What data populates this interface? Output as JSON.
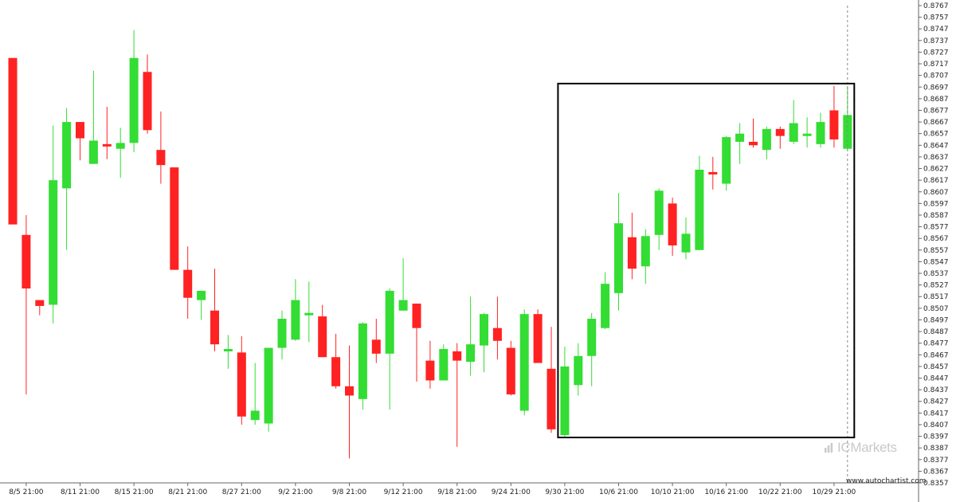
{
  "chart_data": {
    "type": "candlestick",
    "title": "",
    "xlabel": "",
    "ylabel": "",
    "ylim": [
      0.8357,
      0.8767
    ],
    "yticks": [
      "0.8767",
      "0.8757",
      "0.8747",
      "0.8737",
      "0.8727",
      "0.8717",
      "0.8707",
      "0.8697",
      "0.8687",
      "0.8677",
      "0.8667",
      "0.8657",
      "0.8647",
      "0.8637",
      "0.8627",
      "0.8617",
      "0.8607",
      "0.8597",
      "0.8587",
      "0.8577",
      "0.8567",
      "0.8557",
      "0.8547",
      "0.8537",
      "0.8527",
      "0.8517",
      "0.8507",
      "0.8497",
      "0.8487",
      "0.8477",
      "0.8467",
      "0.8457",
      "0.8447",
      "0.8437",
      "0.8427",
      "0.8417",
      "0.8407",
      "0.8397",
      "0.8387",
      "0.8377",
      "0.8367",
      "0.8357"
    ],
    "xticks": [
      {
        "label": "8/5 21:00",
        "index": 1
      },
      {
        "label": "8/11 21:00",
        "index": 5
      },
      {
        "label": "8/15 21:00",
        "index": 9
      },
      {
        "label": "8/21 21:00",
        "index": 13
      },
      {
        "label": "8/27 21:00",
        "index": 17
      },
      {
        "label": "9/2 21:00",
        "index": 21
      },
      {
        "label": "9/8 21:00",
        "index": 25
      },
      {
        "label": "9/12 21:00",
        "index": 29
      },
      {
        "label": "9/18 21:00",
        "index": 33
      },
      {
        "label": "9/24 21:00",
        "index": 37
      },
      {
        "label": "9/30 21:00",
        "index": 41
      },
      {
        "label": "10/6 21:00",
        "index": 45
      },
      {
        "label": "10/10 21:00",
        "index": 49
      },
      {
        "label": "10/16 21:00",
        "index": 53
      },
      {
        "label": "10/22 21:00",
        "index": 57
      },
      {
        "label": "10/29 21:00",
        "index": 61
      }
    ],
    "colors": {
      "up": "#33dd33",
      "down": "#ff2222"
    },
    "candles": [
      {
        "o": 0.8722,
        "h": 0.8722,
        "l": 0.8579,
        "c": 0.8579
      },
      {
        "o": 0.857,
        "h": 0.8587,
        "l": 0.8433,
        "c": 0.8524
      },
      {
        "o": 0.8514,
        "h": 0.8514,
        "l": 0.8501,
        "c": 0.8509
      },
      {
        "o": 0.851,
        "h": 0.8664,
        "l": 0.8494,
        "c": 0.8617
      },
      {
        "o": 0.861,
        "h": 0.8679,
        "l": 0.8557,
        "c": 0.8667
      },
      {
        "o": 0.8667,
        "h": 0.8667,
        "l": 0.8634,
        "c": 0.8653
      },
      {
        "o": 0.8631,
        "h": 0.8711,
        "l": 0.8631,
        "c": 0.8651
      },
      {
        "o": 0.8648,
        "h": 0.868,
        "l": 0.8635,
        "c": 0.8647
      },
      {
        "o": 0.8644,
        "h": 0.8662,
        "l": 0.8619,
        "c": 0.8649
      },
      {
        "o": 0.8649,
        "h": 0.8746,
        "l": 0.8641,
        "c": 0.8722
      },
      {
        "o": 0.871,
        "h": 0.8725,
        "l": 0.8657,
        "c": 0.866
      },
      {
        "o": 0.8643,
        "h": 0.8676,
        "l": 0.8614,
        "c": 0.863
      },
      {
        "o": 0.8628,
        "h": 0.8628,
        "l": 0.854,
        "c": 0.854
      },
      {
        "o": 0.854,
        "h": 0.856,
        "l": 0.8498,
        "c": 0.8516
      },
      {
        "o": 0.8514,
        "h": 0.8521,
        "l": 0.8497,
        "c": 0.8522
      },
      {
        "o": 0.8505,
        "h": 0.8541,
        "l": 0.847,
        "c": 0.8476
      },
      {
        "o": 0.847,
        "h": 0.8484,
        "l": 0.8455,
        "c": 0.8472
      },
      {
        "o": 0.8469,
        "h": 0.8483,
        "l": 0.8407,
        "c": 0.8414
      },
      {
        "o": 0.8411,
        "h": 0.846,
        "l": 0.8407,
        "c": 0.8419
      },
      {
        "o": 0.8408,
        "h": 0.8471,
        "l": 0.8401,
        "c": 0.8473
      },
      {
        "o": 0.8473,
        "h": 0.8505,
        "l": 0.8463,
        "c": 0.8498
      },
      {
        "o": 0.848,
        "h": 0.8532,
        "l": 0.8479,
        "c": 0.8514
      },
      {
        "o": 0.8503,
        "h": 0.853,
        "l": 0.8478,
        "c": 0.8503
      },
      {
        "o": 0.85,
        "h": 0.851,
        "l": 0.8465,
        "c": 0.8465
      },
      {
        "o": 0.8465,
        "h": 0.8485,
        "l": 0.8438,
        "c": 0.844
      },
      {
        "o": 0.844,
        "h": 0.8475,
        "l": 0.8378,
        "c": 0.8432
      },
      {
        "o": 0.8429,
        "h": 0.8495,
        "l": 0.842,
        "c": 0.8494
      },
      {
        "o": 0.848,
        "h": 0.8498,
        "l": 0.846,
        "c": 0.8468
      },
      {
        "o": 0.8468,
        "h": 0.8524,
        "l": 0.842,
        "c": 0.8522
      },
      {
        "o": 0.8505,
        "h": 0.855,
        "l": 0.8505,
        "c": 0.8514
      },
      {
        "o": 0.8511,
        "h": 0.8511,
        "l": 0.8444,
        "c": 0.849
      },
      {
        "o": 0.8462,
        "h": 0.8479,
        "l": 0.8438,
        "c": 0.8445
      },
      {
        "o": 0.8445,
        "h": 0.8476,
        "l": 0.8445,
        "c": 0.8472
      },
      {
        "o": 0.847,
        "h": 0.8477,
        "l": 0.8388,
        "c": 0.8462
      },
      {
        "o": 0.8461,
        "h": 0.8517,
        "l": 0.8449,
        "c": 0.8476
      },
      {
        "o": 0.8475,
        "h": 0.8503,
        "l": 0.8452,
        "c": 0.8502
      },
      {
        "o": 0.849,
        "h": 0.8517,
        "l": 0.8463,
        "c": 0.8479
      },
      {
        "o": 0.8473,
        "h": 0.8479,
        "l": 0.8432,
        "c": 0.8433
      },
      {
        "o": 0.8419,
        "h": 0.8506,
        "l": 0.8415,
        "c": 0.8502
      },
      {
        "o": 0.8502,
        "h": 0.8506,
        "l": 0.846,
        "c": 0.846
      },
      {
        "o": 0.8455,
        "h": 0.8491,
        "l": 0.84,
        "c": 0.8403
      },
      {
        "o": 0.8398,
        "h": 0.8474,
        "l": 0.8396,
        "c": 0.8457
      },
      {
        "o": 0.8441,
        "h": 0.8477,
        "l": 0.8432,
        "c": 0.8466
      },
      {
        "o": 0.8466,
        "h": 0.8503,
        "l": 0.844,
        "c": 0.8498
      },
      {
        "o": 0.849,
        "h": 0.8538,
        "l": 0.8489,
        "c": 0.8528
      },
      {
        "o": 0.852,
        "h": 0.8606,
        "l": 0.8505,
        "c": 0.858
      },
      {
        "o": 0.8568,
        "h": 0.8589,
        "l": 0.8532,
        "c": 0.8541
      },
      {
        "o": 0.8543,
        "h": 0.8575,
        "l": 0.8528,
        "c": 0.8569
      },
      {
        "o": 0.857,
        "h": 0.861,
        "l": 0.8557,
        "c": 0.8608
      },
      {
        "o": 0.8597,
        "h": 0.8602,
        "l": 0.8552,
        "c": 0.8561
      },
      {
        "o": 0.8555,
        "h": 0.8585,
        "l": 0.8549,
        "c": 0.8571
      },
      {
        "o": 0.8557,
        "h": 0.8638,
        "l": 0.8557,
        "c": 0.8626
      },
      {
        "o": 0.8624,
        "h": 0.8637,
        "l": 0.8609,
        "c": 0.8622
      },
      {
        "o": 0.8614,
        "h": 0.8655,
        "l": 0.8608,
        "c": 0.8654
      },
      {
        "o": 0.865,
        "h": 0.8666,
        "l": 0.8631,
        "c": 0.8657
      },
      {
        "o": 0.865,
        "h": 0.867,
        "l": 0.8645,
        "c": 0.8647
      },
      {
        "o": 0.8643,
        "h": 0.8663,
        "l": 0.8635,
        "c": 0.8661
      },
      {
        "o": 0.8661,
        "h": 0.8663,
        "l": 0.8644,
        "c": 0.8655
      },
      {
        "o": 0.865,
        "h": 0.8686,
        "l": 0.8648,
        "c": 0.8666
      },
      {
        "o": 0.8657,
        "h": 0.8671,
        "l": 0.8645,
        "c": 0.8657
      },
      {
        "o": 0.8648,
        "h": 0.8675,
        "l": 0.8645,
        "c": 0.8667
      },
      {
        "o": 0.8677,
        "h": 0.8698,
        "l": 0.8645,
        "c": 0.8652
      },
      {
        "o": 0.8644,
        "h": 0.8698,
        "l": 0.8643,
        "c": 0.8673
      }
    ],
    "highlight_box": {
      "from_index": 41,
      "to_index": 62,
      "y_high": 0.87,
      "y_low": 0.8396
    },
    "cursor_index": 62,
    "grid": false,
    "legend": "none"
  },
  "watermark": {
    "text": "ICMarkets"
  },
  "credit": "www.autochartist.com"
}
